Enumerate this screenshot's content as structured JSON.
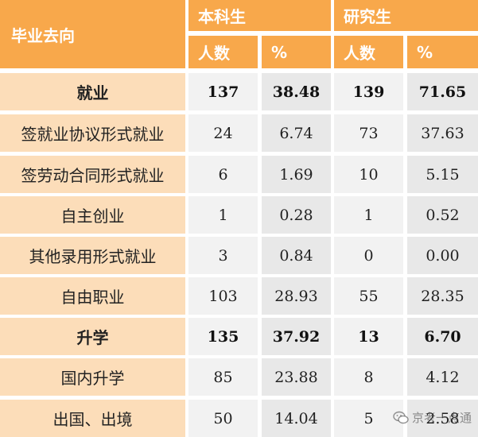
{
  "header": {
    "destination_label": "毕业去向",
    "undergrad_label": "本科生",
    "graduate_label": "研究生",
    "count_label": "人数",
    "percent_label": "%"
  },
  "rows": [
    {
      "label": "就业",
      "ug_count": "137",
      "ug_pct": "38.48",
      "g_count": "139",
      "g_pct": "71.65",
      "bold": true
    },
    {
      "label": "签就业协议形式就业",
      "ug_count": "24",
      "ug_pct": "6.74",
      "g_count": "73",
      "g_pct": "37.63"
    },
    {
      "label": "签劳动合同形式就业",
      "ug_count": "6",
      "ug_pct": "1.69",
      "g_count": "10",
      "g_pct": "5.15"
    },
    {
      "label": "自主创业",
      "ug_count": "1",
      "ug_pct": "0.28",
      "g_count": "1",
      "g_pct": "0.52"
    },
    {
      "label": "其他录用形式就业",
      "ug_count": "3",
      "ug_pct": "0.84",
      "g_count": "0",
      "g_pct": "0.00"
    },
    {
      "label": "自由职业",
      "ug_count": "103",
      "ug_pct": "28.93",
      "g_count": "55",
      "g_pct": "28.35"
    },
    {
      "label": "升学",
      "ug_count": "135",
      "ug_pct": "37.92",
      "g_count": "13",
      "g_pct": "6.70",
      "bold": true
    },
    {
      "label": "国内升学",
      "ug_count": "85",
      "ug_pct": "23.88",
      "g_count": "8",
      "g_pct": "4.12"
    },
    {
      "label": "出国、出境",
      "ug_count": "50",
      "ug_pct": "14.04",
      "g_count": "5",
      "g_pct": "2.58"
    }
  ],
  "watermark": {
    "text": "京考一点通",
    "icon": "wechat-icon"
  }
}
